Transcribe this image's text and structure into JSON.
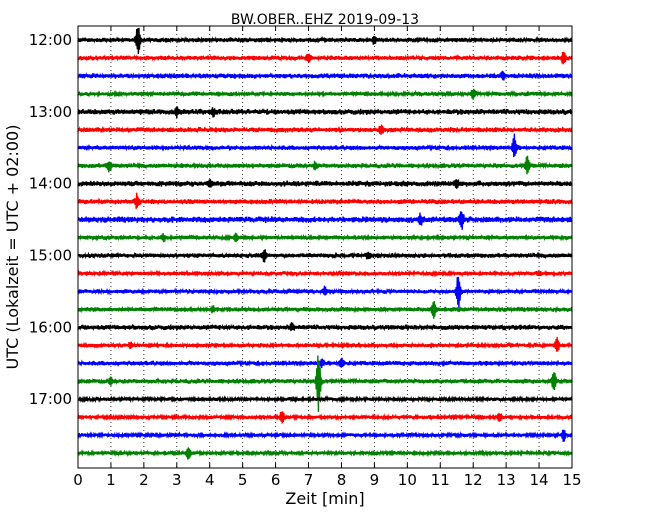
{
  "chart_data": {
    "type": "line",
    "title": "BW.OBER..EHZ 2019-09-13",
    "xlabel": "Zeit  [min]",
    "ylabel": "UTC (Lokalzeit = UTC + 02:00)",
    "xlim": [
      0,
      15
    ],
    "x_ticks": [
      "0",
      "1",
      "2",
      "3",
      "4",
      "5",
      "6",
      "7",
      "8",
      "9",
      "10",
      "11",
      "12",
      "13",
      "14",
      "15"
    ],
    "y_ticks": [
      {
        "row": 0,
        "label": "12:00"
      },
      {
        "row": 4,
        "label": "13:00"
      },
      {
        "row": 8,
        "label": "14:00"
      },
      {
        "row": 12,
        "label": "15:00"
      },
      {
        "row": 16,
        "label": "16:00"
      },
      {
        "row": 20,
        "label": "17:00"
      }
    ],
    "grid": "vertical-dotted",
    "colors": [
      "#000000",
      "#ff0000",
      "#0000ff",
      "#008000"
    ],
    "traces": [
      {
        "start": "12:00",
        "amp": 1.0,
        "events": [
          {
            "t": 1.82,
            "a": 14
          },
          {
            "t": 9.0,
            "a": 3
          }
        ]
      },
      {
        "start": "12:15",
        "amp": 1.0,
        "events": [
          {
            "t": 7.0,
            "a": 4
          },
          {
            "t": 14.75,
            "a": 6
          }
        ]
      },
      {
        "start": "12:30",
        "amp": 1.1,
        "events": [
          {
            "t": 12.9,
            "a": 3
          }
        ]
      },
      {
        "start": "12:45",
        "amp": 0.9,
        "events": [
          {
            "t": 12.0,
            "a": 5
          }
        ]
      },
      {
        "start": "13:00",
        "amp": 1.2,
        "events": [
          {
            "t": 3.0,
            "a": 4
          },
          {
            "t": 4.1,
            "a": 3
          }
        ]
      },
      {
        "start": "13:15",
        "amp": 1.1,
        "events": [
          {
            "t": 9.2,
            "a": 4
          }
        ]
      },
      {
        "start": "13:30",
        "amp": 1.0,
        "events": [
          {
            "t": 13.25,
            "a": 12
          }
        ]
      },
      {
        "start": "13:45",
        "amp": 1.0,
        "events": [
          {
            "t": 0.95,
            "a": 5
          },
          {
            "t": 7.2,
            "a": 3
          },
          {
            "t": 13.65,
            "a": 9
          }
        ]
      },
      {
        "start": "14:00",
        "amp": 1.2,
        "events": [
          {
            "t": 11.5,
            "a": 4
          },
          {
            "t": 4.0,
            "a": 3
          }
        ]
      },
      {
        "start": "14:15",
        "amp": 1.1,
        "events": [
          {
            "t": 1.8,
            "a": 7
          }
        ]
      },
      {
        "start": "14:30",
        "amp": 1.3,
        "events": [
          {
            "t": 10.4,
            "a": 5
          },
          {
            "t": 11.65,
            "a": 9
          }
        ]
      },
      {
        "start": "14:45",
        "amp": 0.9,
        "events": [
          {
            "t": 4.8,
            "a": 4
          },
          {
            "t": 2.6,
            "a": 3
          }
        ]
      },
      {
        "start": "15:00",
        "amp": 1.0,
        "events": [
          {
            "t": 5.65,
            "a": 6
          },
          {
            "t": 8.8,
            "a": 3
          }
        ]
      },
      {
        "start": "15:15",
        "amp": 0.9,
        "events": [
          {
            "t": 14.0,
            "a": 2
          }
        ]
      },
      {
        "start": "15:30",
        "amp": 0.9,
        "events": [
          {
            "t": 7.5,
            "a": 5
          },
          {
            "t": 11.55,
            "a": 18
          }
        ]
      },
      {
        "start": "15:45",
        "amp": 1.0,
        "events": [
          {
            "t": 10.8,
            "a": 9
          },
          {
            "t": 4.1,
            "a": 3
          }
        ]
      },
      {
        "start": "16:00",
        "amp": 1.1,
        "events": [
          {
            "t": 6.5,
            "a": 3
          }
        ]
      },
      {
        "start": "16:15",
        "amp": 0.9,
        "events": [
          {
            "t": 14.55,
            "a": 8
          },
          {
            "t": 1.6,
            "a": 3
          }
        ]
      },
      {
        "start": "16:30",
        "amp": 1.0,
        "events": [
          {
            "t": 8.0,
            "a": 5
          },
          {
            "t": 7.4,
            "a": 4
          }
        ]
      },
      {
        "start": "16:45",
        "amp": 1.0,
        "events": [
          {
            "t": 7.3,
            "a": 30
          },
          {
            "t": 14.45,
            "a": 9
          },
          {
            "t": 1.0,
            "a": 3
          }
        ]
      },
      {
        "start": "17:00",
        "amp": 0.8,
        "events": []
      },
      {
        "start": "17:15",
        "amp": 0.8,
        "events": [
          {
            "t": 6.2,
            "a": 7
          },
          {
            "t": 12.8,
            "a": 4
          }
        ]
      },
      {
        "start": "17:30",
        "amp": 0.8,
        "events": [
          {
            "t": 14.75,
            "a": 6
          }
        ]
      },
      {
        "start": "17:45",
        "amp": 0.8,
        "events": [
          {
            "t": 3.35,
            "a": 7
          }
        ]
      }
    ]
  }
}
